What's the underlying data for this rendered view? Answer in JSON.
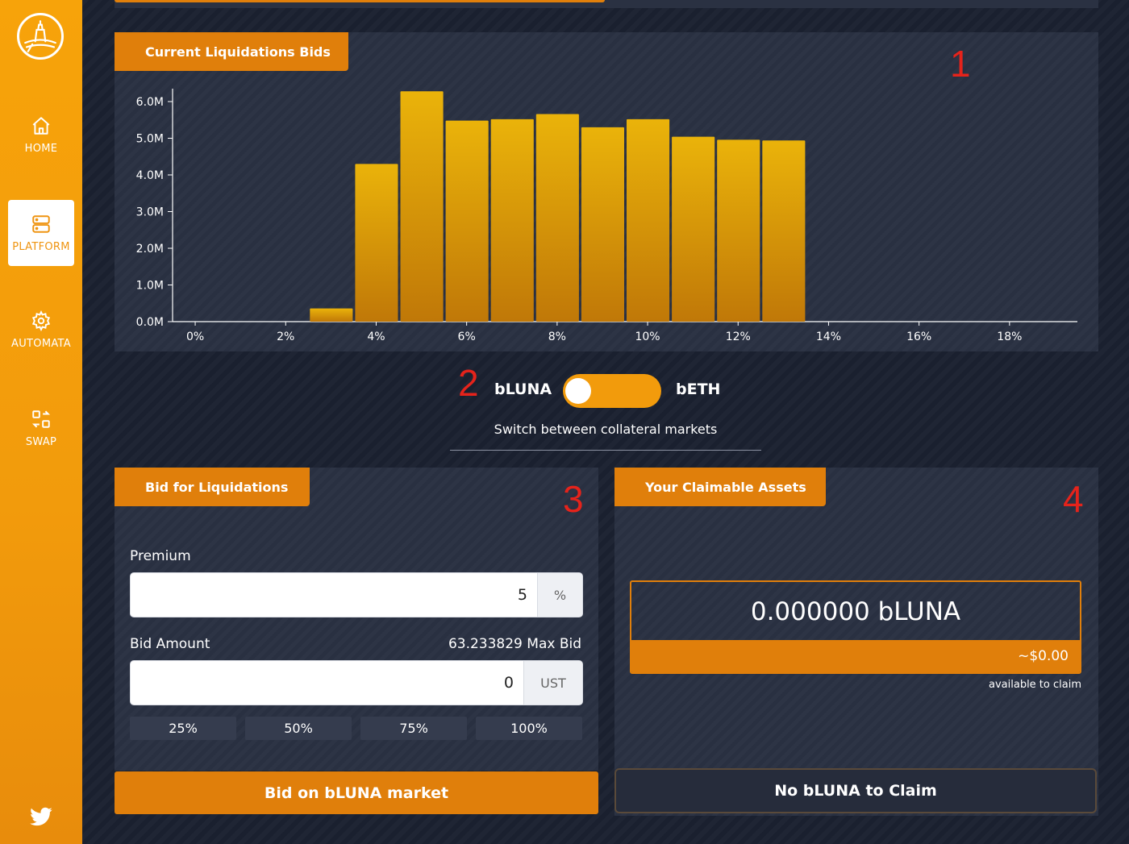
{
  "sidebar": {
    "items": [
      {
        "label": "HOME",
        "icon": "home-icon"
      },
      {
        "label": "PLATFORM",
        "icon": "server-icon"
      },
      {
        "label": "AUTOMATA",
        "icon": "gear-icon"
      },
      {
        "label": "SWAP",
        "icon": "swap-icon"
      }
    ],
    "active": "PLATFORM",
    "footer_icon": "twitter-icon"
  },
  "liquidations": {
    "tab_label": "Current Liquidations Bids",
    "marker": "1"
  },
  "chart_data": {
    "type": "bar",
    "title": "",
    "xlabel": "",
    "ylabel": "",
    "categories": [
      "0%",
      "1%",
      "2%",
      "3%",
      "4%",
      "5%",
      "6%",
      "7%",
      "8%",
      "9%",
      "10%",
      "11%",
      "12%",
      "13%",
      "14%",
      "15%",
      "16%",
      "17%",
      "18%",
      "19%"
    ],
    "values": [
      0,
      0,
      0,
      0.36,
      4.3,
      6.28,
      5.48,
      5.52,
      5.66,
      5.3,
      5.52,
      5.04,
      4.96,
      4.94,
      0,
      0,
      0,
      0,
      0,
      0
    ],
    "unit": "M",
    "ylim": [
      0,
      6.0
    ],
    "y_ticks": [
      "0.0M",
      "1.0M",
      "2.0M",
      "3.0M",
      "4.0M",
      "5.0M",
      "6.0M"
    ],
    "x_ticks": [
      "0%",
      "2%",
      "4%",
      "6%",
      "8%",
      "10%",
      "12%",
      "14%",
      "16%",
      "18%"
    ],
    "bar_color": "#e6a80c",
    "grid": false,
    "legend": "none"
  },
  "market_toggle": {
    "left_label": "bLUNA",
    "right_label": "bETH",
    "selected": "bLUNA",
    "caption": "Switch between collateral markets",
    "marker": "2"
  },
  "bid_panel": {
    "tab_label": "Bid for Liquidations",
    "marker": "3",
    "premium_label": "Premium",
    "premium_value": "5",
    "premium_unit": "%",
    "bid_amount_label": "Bid Amount",
    "max_bid": "63.233829 Max Bid",
    "bid_amount_value": "0",
    "bid_unit": "UST",
    "percent_buttons": [
      "25%",
      "50%",
      "75%",
      "100%"
    ],
    "submit_label": "Bid on bLUNA market"
  },
  "claim_panel": {
    "tab_label": "Your Claimable Assets",
    "marker": "4",
    "amount": "0.000000 bLUNA",
    "usd_value": "~$0.00",
    "note": "available to claim",
    "button_label": "No bLUNA to Claim"
  },
  "colors": {
    "accent": "#e07f0b",
    "sidebar": "#f29b0c",
    "panel": "#2a3142",
    "background": "#1b2130",
    "marker": "#e5231b"
  }
}
